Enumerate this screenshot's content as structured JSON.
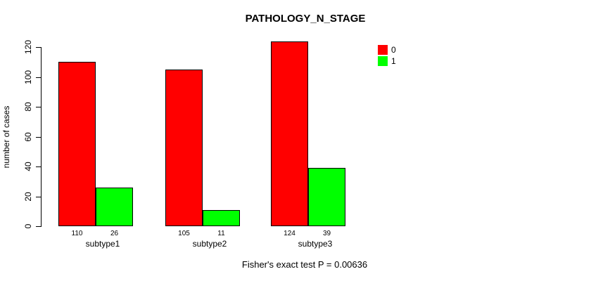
{
  "title": "PATHOLOGY_N_STAGE",
  "chart_data": {
    "type": "bar",
    "title": "PATHOLOGY_N_STAGE",
    "xlabel": "",
    "ylabel": "number of cases",
    "categories": [
      "subtype1",
      "subtype2",
      "subtype3"
    ],
    "series": [
      {
        "name": "0",
        "color": "#ff0000",
        "values": [
          110,
          105,
          124
        ]
      },
      {
        "name": "1",
        "color": "#00ff00",
        "values": [
          26,
          11,
          39
        ]
      }
    ],
    "bar_value_labels": [
      [
        110,
        26
      ],
      [
        105,
        11
      ],
      [
        124,
        39
      ]
    ],
    "ylim": [
      0,
      120
    ],
    "yticks": [
      0,
      20,
      40,
      60,
      80,
      100,
      120
    ],
    "grid": false,
    "legend_position": "top-right",
    "annotation": "Fisher's exact test P = 0.00636"
  },
  "colors": {
    "series_0": "#ff0000",
    "series_1": "#00ff00",
    "bar_border": "#000000",
    "axis": "#000000",
    "text": "#000000",
    "background": "#ffffff"
  }
}
